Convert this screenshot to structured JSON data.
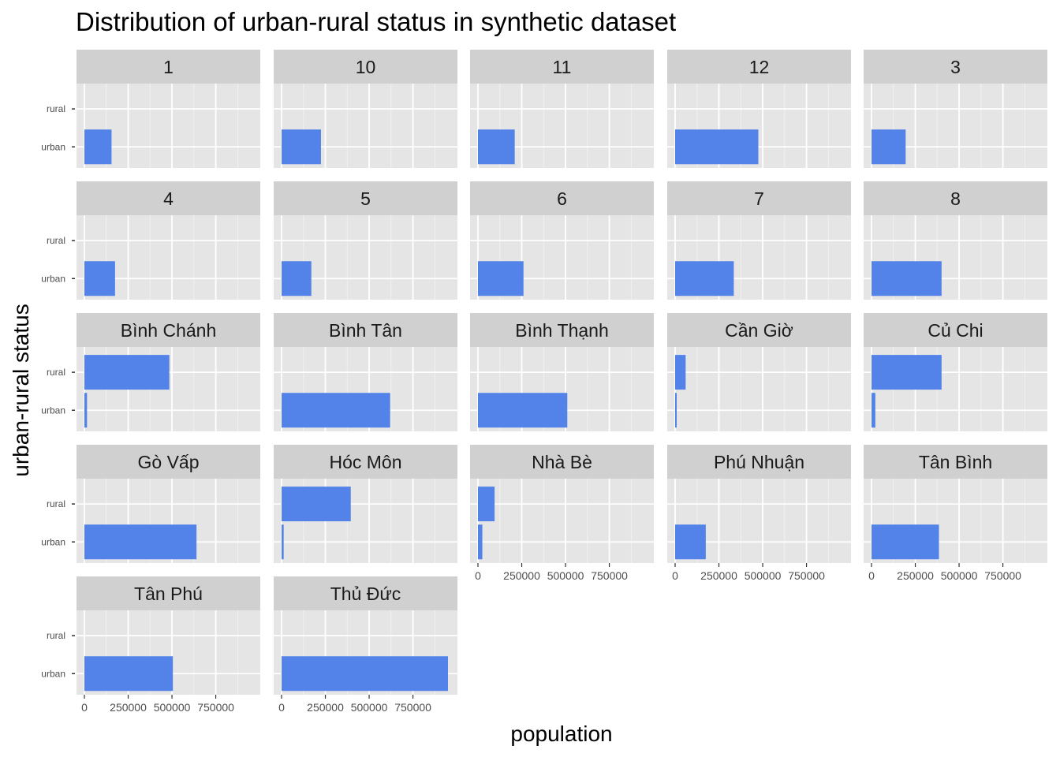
{
  "chart_data": {
    "type": "bar",
    "orientation": "horizontal",
    "title": "Distribution of urban-rural status in synthetic dataset",
    "xlabel": "population",
    "ylabel": "urban-rural status",
    "categories": [
      "rural",
      "urban"
    ],
    "xlim": [
      0,
      950000
    ],
    "xticks": [
      "0",
      "250000",
      "500000",
      "750000"
    ],
    "xtick_values": [
      0,
      250000,
      500000,
      750000
    ],
    "grid": true,
    "bar_color": "#5383e8",
    "panel_bg": "#e5e5e5",
    "strip_bg": "#d0d0d0",
    "panels": [
      {
        "name": "1",
        "values": {
          "rural": 0,
          "urban": 155000
        }
      },
      {
        "name": "10",
        "values": {
          "rural": 0,
          "urban": 225000
        }
      },
      {
        "name": "11",
        "values": {
          "rural": 0,
          "urban": 210000
        }
      },
      {
        "name": "12",
        "values": {
          "rural": 0,
          "urban": 475000
        }
      },
      {
        "name": "3",
        "values": {
          "rural": 0,
          "urban": 195000
        }
      },
      {
        "name": "4",
        "values": {
          "rural": 0,
          "urban": 175000
        }
      },
      {
        "name": "5",
        "values": {
          "rural": 0,
          "urban": 170000
        }
      },
      {
        "name": "6",
        "values": {
          "rural": 0,
          "urban": 260000
        }
      },
      {
        "name": "7",
        "values": {
          "rural": 0,
          "urban": 335000
        }
      },
      {
        "name": "8",
        "values": {
          "rural": 0,
          "urban": 400000
        }
      },
      {
        "name": "Bình Chánh",
        "values": {
          "rural": 485000,
          "urban": 15000
        }
      },
      {
        "name": "Bình Tân",
        "values": {
          "rural": 0,
          "urban": 620000
        }
      },
      {
        "name": "Bình Thạnh",
        "values": {
          "rural": 0,
          "urban": 510000
        }
      },
      {
        "name": "Cần Giờ",
        "values": {
          "rural": 60000,
          "urban": 8000
        }
      },
      {
        "name": "Củ Chi",
        "values": {
          "rural": 400000,
          "urban": 22000
        }
      },
      {
        "name": "Gò Vấp",
        "values": {
          "rural": 0,
          "urban": 640000
        }
      },
      {
        "name": "Hóc Môn",
        "values": {
          "rural": 395000,
          "urban": 12000
        }
      },
      {
        "name": "Nhà Bè",
        "values": {
          "rural": 95000,
          "urban": 25000
        }
      },
      {
        "name": "Phú Nhuận",
        "values": {
          "rural": 0,
          "urban": 175000
        }
      },
      {
        "name": "Tân Bình",
        "values": {
          "rural": 0,
          "urban": 385000
        }
      },
      {
        "name": "Tân Phú",
        "values": {
          "rural": 0,
          "urban": 505000
        }
      },
      {
        "name": "Thủ Đức",
        "values": {
          "rural": 0,
          "urban": 950000
        }
      }
    ]
  }
}
